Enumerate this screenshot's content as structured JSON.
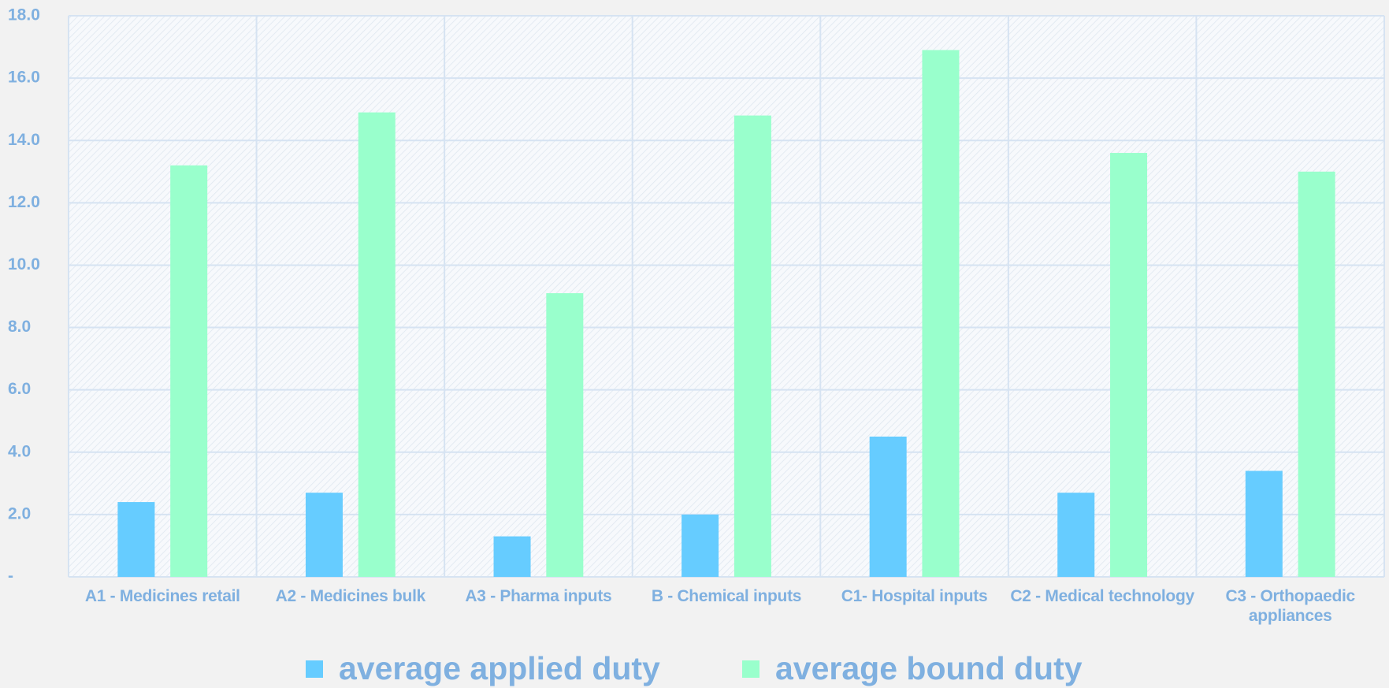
{
  "chart_data": {
    "type": "bar",
    "categories": [
      "A1 - Medicines retail",
      "A2 - Medicines bulk",
      "A3 - Pharma  inputs",
      "B - Chemical inputs",
      "C1- Hospital inputs",
      "C2 - Medical technology",
      "C3 - Orthopaedic appliances"
    ],
    "series": [
      {
        "name": "average applied duty",
        "color": "#66ccff",
        "values": [
          2.4,
          2.7,
          1.3,
          2.0,
          4.5,
          2.7,
          3.4
        ]
      },
      {
        "name": "average bound duty",
        "color": "#99ffcc",
        "values": [
          13.2,
          14.9,
          9.1,
          14.8,
          16.9,
          13.6,
          13.0
        ]
      }
    ],
    "ylim": [
      0,
      18
    ],
    "yticks": [
      {
        "value": 0,
        "label": "-"
      },
      {
        "value": 2,
        "label": "2.0"
      },
      {
        "value": 4,
        "label": "4.0"
      },
      {
        "value": 6,
        "label": "6.0"
      },
      {
        "value": 8,
        "label": "8.0"
      },
      {
        "value": 10,
        "label": "10.0"
      },
      {
        "value": 12,
        "label": "12.0"
      },
      {
        "value": 14,
        "label": "14.0"
      },
      {
        "value": 16,
        "label": "16.0"
      },
      {
        "value": 18,
        "label": "18.0"
      }
    ],
    "grid": true,
    "legend": "bottom"
  }
}
